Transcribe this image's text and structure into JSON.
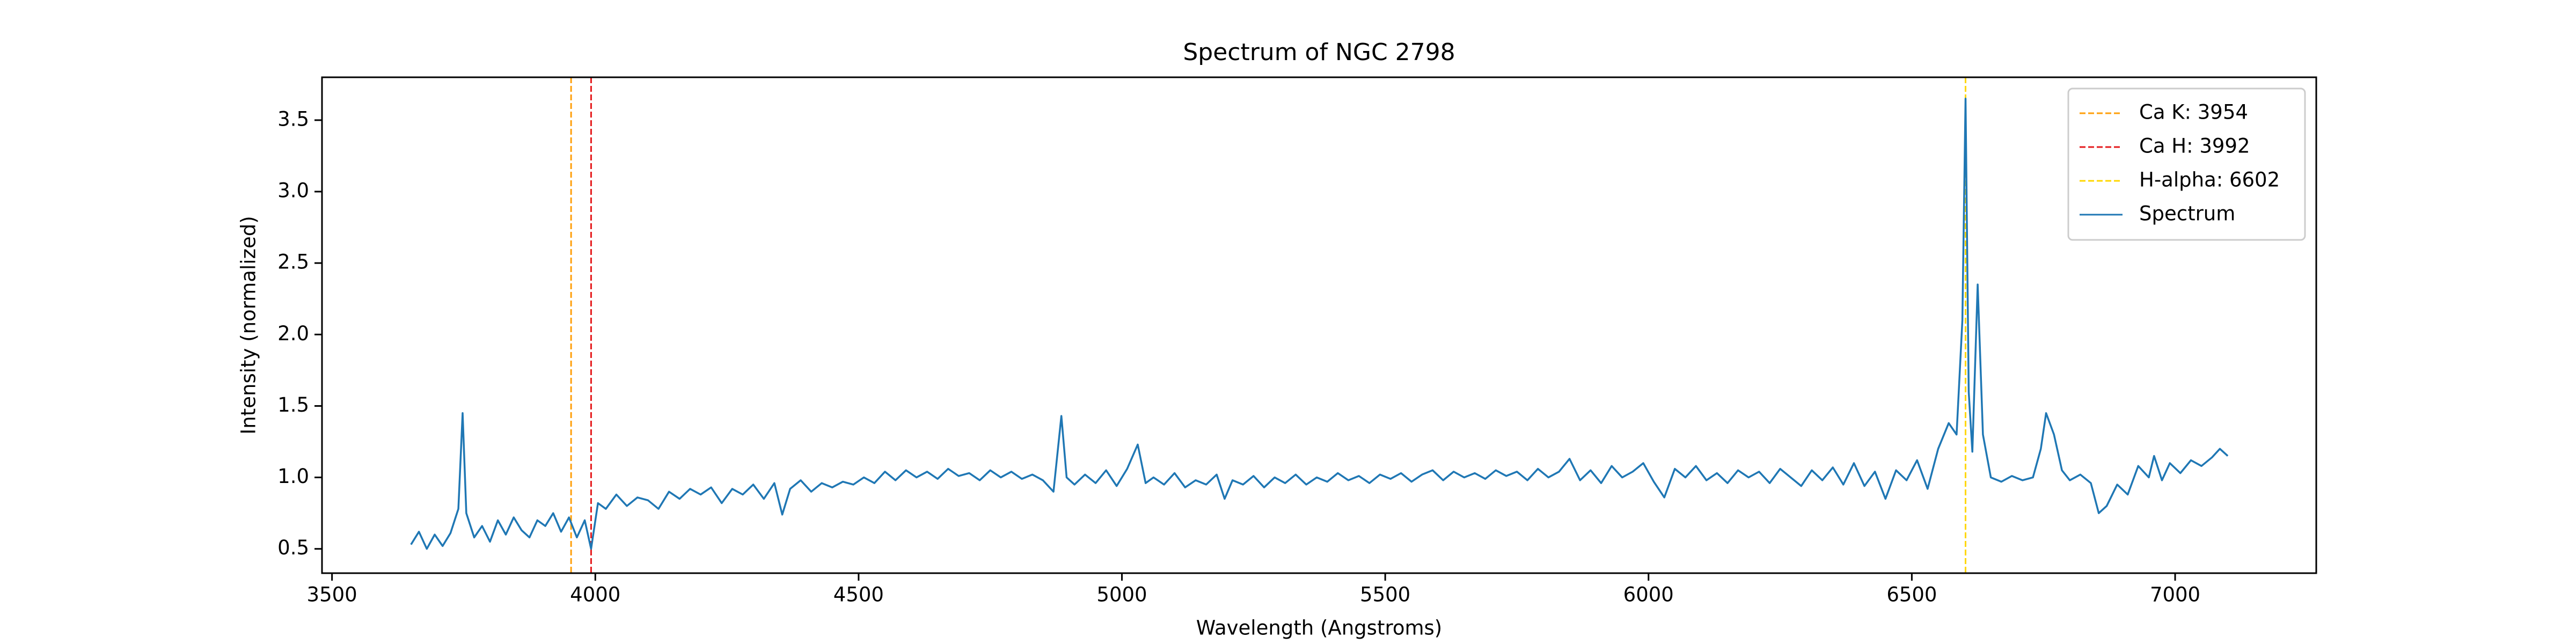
{
  "chart_data": {
    "type": "line",
    "title": "Spectrum of NGC 2798",
    "x_label": "Wavelength (Angstroms)",
    "y_label": "Intensity (normalized)",
    "xlim": [
      3481,
      7268
    ],
    "ylim": [
      0.33,
      3.8
    ],
    "xticks": [
      3500,
      4000,
      4500,
      5000,
      5500,
      6000,
      6500,
      7000
    ],
    "yticks": [
      0.5,
      {
        "value": 1,
        "label": "1.0"
      },
      1.5,
      {
        "value": 2,
        "label": "2.0"
      },
      2.5,
      {
        "value": 3,
        "label": "3.0"
      },
      3.5
    ],
    "legend": "upper right",
    "vlines": [
      {
        "name": "Ca K: 3954",
        "x": 3954,
        "color": "#ff9f0a"
      },
      {
        "name": "Ca H: 3992",
        "x": 3992,
        "color": "#e41a1c"
      },
      {
        "name": "H-alpha: 6602",
        "x": 6602,
        "color": "#ffd700"
      }
    ],
    "series": [
      {
        "name": "Spectrum",
        "color": "#1f77b4",
        "x": [
          3650,
          3665,
          3680,
          3695,
          3710,
          3725,
          3740,
          3748,
          3755,
          3770,
          3785,
          3800,
          3815,
          3830,
          3845,
          3860,
          3875,
          3890,
          3905,
          3920,
          3935,
          3950,
          3965,
          3980,
          3992,
          4005,
          4020,
          4040,
          4060,
          4080,
          4100,
          4120,
          4140,
          4160,
          4180,
          4200,
          4220,
          4240,
          4260,
          4280,
          4300,
          4320,
          4340,
          4355,
          4370,
          4390,
          4410,
          4430,
          4450,
          4470,
          4490,
          4510,
          4530,
          4550,
          4570,
          4590,
          4610,
          4630,
          4650,
          4670,
          4690,
          4710,
          4730,
          4750,
          4770,
          4790,
          4810,
          4830,
          4850,
          4870,
          4885,
          4895,
          4910,
          4930,
          4950,
          4970,
          4990,
          5010,
          5030,
          5045,
          5060,
          5080,
          5100,
          5120,
          5140,
          5160,
          5180,
          5195,
          5210,
          5230,
          5250,
          5270,
          5290,
          5310,
          5330,
          5350,
          5370,
          5390,
          5410,
          5430,
          5450,
          5470,
          5490,
          5510,
          5530,
          5550,
          5570,
          5590,
          5610,
          5630,
          5650,
          5670,
          5690,
          5710,
          5730,
          5750,
          5770,
          5790,
          5810,
          5830,
          5850,
          5870,
          5890,
          5910,
          5930,
          5950,
          5970,
          5990,
          6010,
          6030,
          6050,
          6070,
          6090,
          6110,
          6130,
          6150,
          6170,
          6190,
          6210,
          6230,
          6250,
          6270,
          6290,
          6310,
          6330,
          6350,
          6370,
          6390,
          6410,
          6430,
          6450,
          6470,
          6490,
          6510,
          6530,
          6550,
          6570,
          6585,
          6596,
          6602,
          6608,
          6615,
          6625,
          6635,
          6650,
          6670,
          6690,
          6710,
          6730,
          6745,
          6755,
          6770,
          6785,
          6800,
          6820,
          6840,
          6855,
          6870,
          6890,
          6910,
          6930,
          6950,
          6960,
          6975,
          6990,
          7010,
          7030,
          7050,
          7070,
          7085,
          7100
        ],
        "values": [
          0.53,
          0.62,
          0.5,
          0.6,
          0.52,
          0.61,
          0.78,
          1.45,
          0.75,
          0.58,
          0.66,
          0.55,
          0.7,
          0.6,
          0.72,
          0.63,
          0.58,
          0.7,
          0.66,
          0.75,
          0.62,
          0.72,
          0.58,
          0.7,
          0.5,
          0.82,
          0.78,
          0.88,
          0.8,
          0.86,
          0.84,
          0.78,
          0.9,
          0.85,
          0.92,
          0.88,
          0.93,
          0.82,
          0.92,
          0.88,
          0.95,
          0.85,
          0.96,
          0.74,
          0.92,
          0.98,
          0.9,
          0.96,
          0.93,
          0.97,
          0.95,
          1.0,
          0.96,
          1.04,
          0.98,
          1.05,
          1.0,
          1.04,
          0.99,
          1.06,
          1.01,
          1.03,
          0.98,
          1.05,
          1.0,
          1.04,
          0.99,
          1.02,
          0.98,
          0.9,
          1.43,
          1.0,
          0.95,
          1.02,
          0.96,
          1.05,
          0.94,
          1.06,
          1.23,
          0.96,
          1.0,
          0.95,
          1.03,
          0.93,
          0.98,
          0.95,
          1.02,
          0.85,
          0.98,
          0.95,
          1.01,
          0.93,
          1.0,
          0.96,
          1.02,
          0.95,
          1.0,
          0.97,
          1.03,
          0.98,
          1.01,
          0.96,
          1.02,
          0.99,
          1.03,
          0.97,
          1.02,
          1.05,
          0.98,
          1.04,
          1.0,
          1.03,
          0.99,
          1.05,
          1.01,
          1.04,
          0.98,
          1.06,
          1.0,
          1.04,
          1.13,
          0.98,
          1.05,
          0.96,
          1.08,
          1.0,
          1.04,
          1.1,
          0.97,
          0.86,
          1.06,
          1.0,
          1.08,
          0.98,
          1.03,
          0.96,
          1.05,
          1.0,
          1.04,
          0.96,
          1.06,
          1.0,
          0.94,
          1.05,
          0.98,
          1.07,
          0.95,
          1.1,
          0.94,
          1.04,
          0.85,
          1.05,
          0.98,
          1.12,
          0.92,
          1.2,
          1.38,
          1.3,
          2.1,
          3.65,
          1.6,
          1.18,
          2.35,
          1.3,
          1.0,
          0.97,
          1.01,
          0.98,
          1.0,
          1.2,
          1.45,
          1.3,
          1.05,
          0.98,
          1.02,
          0.96,
          0.75,
          0.8,
          0.95,
          0.88,
          1.08,
          1.0,
          1.15,
          0.98,
          1.1,
          1.03,
          1.12,
          1.08,
          1.14,
          1.2,
          1.15
        ]
      }
    ]
  }
}
